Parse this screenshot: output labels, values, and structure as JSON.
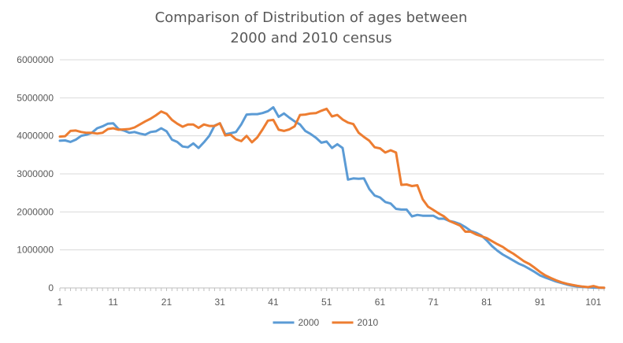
{
  "chart_data": {
    "type": "line",
    "title_line1": "Comparison of Distribution of ages between",
    "title_line2": "2000 and 2010 census",
    "xlabel": "",
    "ylabel": "",
    "ylim": [
      0,
      6000000
    ],
    "yticks": [
      "0",
      "1000000",
      "2000000",
      "3000000",
      "4000000",
      "5000000",
      "6000000"
    ],
    "x_tick_labels": [
      "1",
      "11",
      "21",
      "31",
      "41",
      "51",
      "61",
      "71",
      "81",
      "91",
      "101"
    ],
    "x_tick_positions": [
      1,
      11,
      21,
      31,
      41,
      51,
      61,
      71,
      81,
      91,
      101
    ],
    "grid": "horizontal",
    "legend_position": "bottom",
    "x": [
      1,
      2,
      3,
      4,
      5,
      6,
      7,
      8,
      9,
      10,
      11,
      12,
      13,
      14,
      15,
      16,
      17,
      18,
      19,
      20,
      21,
      22,
      23,
      24,
      25,
      26,
      27,
      28,
      29,
      30,
      31,
      32,
      33,
      34,
      35,
      36,
      37,
      38,
      39,
      40,
      41,
      42,
      43,
      44,
      45,
      46,
      47,
      48,
      49,
      50,
      51,
      52,
      53,
      54,
      55,
      56,
      57,
      58,
      59,
      60,
      61,
      62,
      63,
      64,
      65,
      66,
      67,
      68,
      69,
      70,
      71,
      72,
      73,
      74,
      75,
      76,
      77,
      78,
      79,
      80,
      81,
      82,
      83,
      84,
      85,
      86,
      87,
      88,
      89,
      90,
      91,
      92,
      93,
      94,
      95,
      96,
      97,
      98,
      99,
      100,
      101,
      102,
      103
    ],
    "series": [
      {
        "name": "2000",
        "color": "#5b9bd5",
        "values": [
          3870000,
          3880000,
          3840000,
          3900000,
          4000000,
          4030000,
          4080000,
          4200000,
          4250000,
          4320000,
          4330000,
          4180000,
          4140000,
          4080000,
          4100000,
          4060000,
          4030000,
          4100000,
          4120000,
          4200000,
          4120000,
          3900000,
          3840000,
          3720000,
          3700000,
          3800000,
          3680000,
          3830000,
          4000000,
          4270000,
          4330000,
          4040000,
          4070000,
          4100000,
          4300000,
          4560000,
          4570000,
          4570000,
          4600000,
          4650000,
          4750000,
          4500000,
          4590000,
          4480000,
          4380000,
          4300000,
          4130000,
          4050000,
          3950000,
          3820000,
          3850000,
          3680000,
          3780000,
          3680000,
          2850000,
          2880000,
          2870000,
          2880000,
          2600000,
          2430000,
          2380000,
          2260000,
          2220000,
          2080000,
          2060000,
          2060000,
          1880000,
          1920000,
          1900000,
          1900000,
          1900000,
          1820000,
          1820000,
          1760000,
          1730000,
          1680000,
          1600000,
          1500000,
          1450000,
          1380000,
          1250000,
          1100000,
          980000,
          880000,
          800000,
          720000,
          640000,
          580000,
          500000,
          420000,
          330000,
          270000,
          220000,
          170000,
          130000,
          90000,
          60000,
          40000,
          25000,
          15000,
          8000,
          4000,
          2000
        ]
      },
      {
        "name": "2010",
        "color": "#ed7d31",
        "values": [
          3980000,
          3990000,
          4130000,
          4140000,
          4100000,
          4080000,
          4080000,
          4060000,
          4080000,
          4180000,
          4200000,
          4160000,
          4170000,
          4180000,
          4220000,
          4300000,
          4380000,
          4450000,
          4540000,
          4640000,
          4580000,
          4420000,
          4320000,
          4240000,
          4300000,
          4300000,
          4210000,
          4300000,
          4260000,
          4260000,
          4330000,
          4010000,
          4030000,
          3910000,
          3860000,
          4000000,
          3830000,
          3960000,
          4170000,
          4400000,
          4420000,
          4160000,
          4130000,
          4170000,
          4250000,
          4550000,
          4560000,
          4590000,
          4600000,
          4660000,
          4710000,
          4510000,
          4550000,
          4430000,
          4350000,
          4310000,
          4080000,
          3970000,
          3870000,
          3700000,
          3670000,
          3560000,
          3620000,
          3560000,
          2710000,
          2720000,
          2680000,
          2700000,
          2330000,
          2140000,
          2050000,
          1960000,
          1880000,
          1760000,
          1700000,
          1640000,
          1480000,
          1480000,
          1410000,
          1360000,
          1310000,
          1230000,
          1150000,
          1080000,
          980000,
          900000,
          800000,
          700000,
          630000,
          530000,
          420000,
          330000,
          260000,
          200000,
          150000,
          110000,
          80000,
          55000,
          35000,
          20000,
          50000,
          10000,
          5000
        ]
      }
    ]
  }
}
